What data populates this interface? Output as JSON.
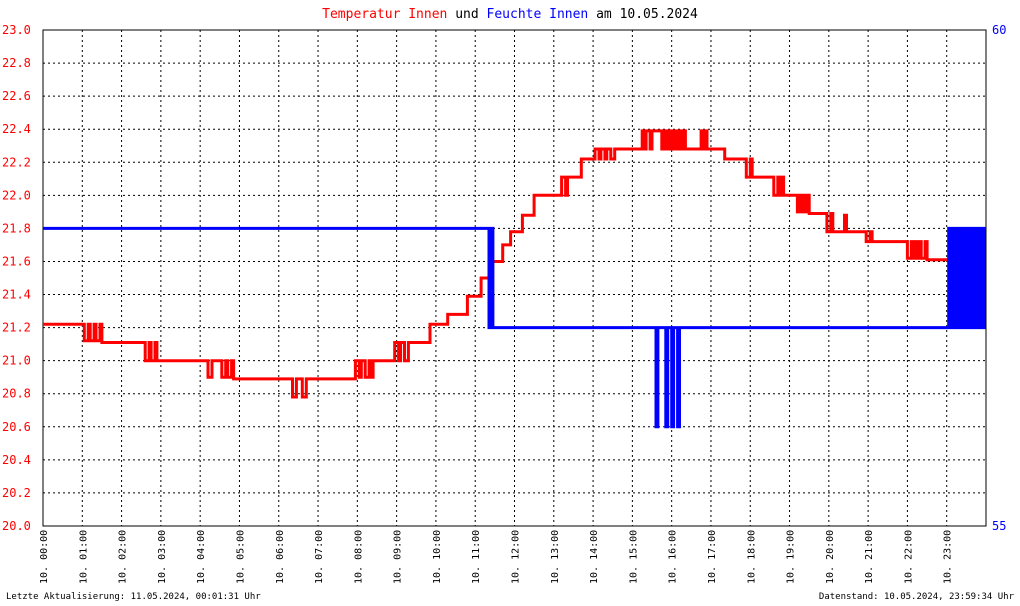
{
  "chart_data": {
    "type": "line",
    "title_parts": [
      {
        "text": "Temperatur Innen",
        "color": "#ff0000"
      },
      {
        "text": " und ",
        "color": "#000000"
      },
      {
        "text": "Feuchte Innen",
        "color": "#0000ff"
      },
      {
        "text": " am 10.05.2024",
        "color": "#000000"
      }
    ],
    "x_ticks": [
      "10. 00:00",
      "10. 01:00",
      "10. 02:00",
      "10. 03:00",
      "10. 04:00",
      "10. 05:00",
      "10. 06:00",
      "10. 07:00",
      "10. 08:00",
      "10. 09:00",
      "10. 10:00",
      "10. 11:00",
      "10. 12:00",
      "10. 13:00",
      "10. 14:00",
      "10. 15:00",
      "10. 16:00",
      "10. 17:00",
      "10. 18:00",
      "10. 19:00",
      "10. 20:00",
      "10. 21:00",
      "10. 22:00",
      "10. 23:00"
    ],
    "xlim_hours": [
      0,
      24
    ],
    "left_axis": {
      "ylim": [
        20.0,
        23.0
      ],
      "ticks": [
        "20.0",
        "20.2",
        "20.4",
        "20.6",
        "20.8",
        "21.0",
        "21.2",
        "21.4",
        "21.6",
        "21.8",
        "22.0",
        "22.2",
        "22.4",
        "22.6",
        "22.8",
        "23.0"
      ],
      "color": "#ff0000"
    },
    "right_axis": {
      "ylim": [
        55,
        60
      ],
      "ticks": [
        "55",
        "60"
      ],
      "color": "#0000ff"
    },
    "grid": true,
    "series": [
      {
        "axis": "left",
        "color": "#ff0000",
        "step": true,
        "points": [
          [
            0.0,
            21.22
          ],
          [
            1.05,
            21.22
          ],
          [
            1.05,
            21.12
          ],
          [
            1.15,
            21.22
          ],
          [
            1.2,
            21.12
          ],
          [
            1.3,
            21.22
          ],
          [
            1.35,
            21.12
          ],
          [
            1.45,
            21.22
          ],
          [
            1.5,
            21.11
          ],
          [
            2.6,
            21.11
          ],
          [
            2.6,
            21.0
          ],
          [
            2.7,
            21.11
          ],
          [
            2.75,
            21.0
          ],
          [
            2.85,
            21.11
          ],
          [
            2.9,
            21.0
          ],
          [
            4.2,
            21.0
          ],
          [
            4.2,
            20.9
          ],
          [
            4.3,
            21.0
          ],
          [
            4.5,
            21.0
          ],
          [
            4.55,
            20.9
          ],
          [
            4.65,
            21.0
          ],
          [
            4.7,
            20.9
          ],
          [
            4.8,
            21.0
          ],
          [
            4.85,
            20.89
          ],
          [
            6.35,
            20.89
          ],
          [
            6.35,
            20.78
          ],
          [
            6.45,
            20.89
          ],
          [
            6.6,
            20.89
          ],
          [
            6.6,
            20.78
          ],
          [
            6.7,
            20.89
          ],
          [
            7.95,
            20.89
          ],
          [
            7.95,
            21.0
          ],
          [
            8.05,
            20.9
          ],
          [
            8.1,
            21.0
          ],
          [
            8.2,
            20.9
          ],
          [
            8.3,
            21.0
          ],
          [
            8.35,
            20.9
          ],
          [
            8.4,
            21.0
          ],
          [
            8.95,
            21.0
          ],
          [
            8.95,
            21.11
          ],
          [
            9.05,
            21.0
          ],
          [
            9.1,
            21.11
          ],
          [
            9.2,
            21.0
          ],
          [
            9.3,
            21.11
          ],
          [
            9.85,
            21.11
          ],
          [
            9.85,
            21.22
          ],
          [
            10.0,
            21.22
          ],
          [
            10.3,
            21.22
          ],
          [
            10.3,
            21.28
          ],
          [
            10.8,
            21.28
          ],
          [
            10.8,
            21.39
          ],
          [
            11.15,
            21.39
          ],
          [
            11.15,
            21.5
          ],
          [
            11.4,
            21.5
          ],
          [
            11.4,
            21.6
          ],
          [
            11.7,
            21.6
          ],
          [
            11.7,
            21.7
          ],
          [
            11.9,
            21.7
          ],
          [
            11.9,
            21.78
          ],
          [
            12.2,
            21.78
          ],
          [
            12.2,
            21.88
          ],
          [
            12.5,
            21.88
          ],
          [
            12.5,
            22.0
          ],
          [
            13.2,
            22.0
          ],
          [
            13.2,
            22.11
          ],
          [
            13.3,
            22.0
          ],
          [
            13.35,
            22.11
          ],
          [
            13.7,
            22.11
          ],
          [
            13.7,
            22.22
          ],
          [
            14.05,
            22.22
          ],
          [
            14.05,
            22.28
          ],
          [
            14.15,
            22.22
          ],
          [
            14.2,
            22.28
          ],
          [
            14.3,
            22.22
          ],
          [
            14.35,
            22.28
          ],
          [
            14.45,
            22.22
          ],
          [
            14.55,
            22.28
          ],
          [
            15.25,
            22.28
          ],
          [
            15.25,
            22.39
          ],
          [
            15.3,
            22.28
          ],
          [
            15.35,
            22.39
          ],
          [
            15.45,
            22.28
          ],
          [
            15.5,
            22.39
          ],
          [
            15.75,
            22.39
          ],
          [
            15.75,
            22.28
          ],
          [
            15.8,
            22.39
          ],
          [
            15.85,
            22.28
          ],
          [
            15.9,
            22.39
          ],
          [
            15.95,
            22.28
          ],
          [
            16.0,
            22.39
          ],
          [
            16.05,
            22.28
          ],
          [
            16.1,
            22.39
          ],
          [
            16.15,
            22.28
          ],
          [
            16.2,
            22.39
          ],
          [
            16.25,
            22.28
          ],
          [
            16.3,
            22.39
          ],
          [
            16.35,
            22.28
          ],
          [
            16.75,
            22.28
          ],
          [
            16.75,
            22.39
          ],
          [
            16.8,
            22.28
          ],
          [
            16.85,
            22.39
          ],
          [
            16.9,
            22.28
          ],
          [
            17.35,
            22.28
          ],
          [
            17.35,
            22.22
          ],
          [
            17.9,
            22.22
          ],
          [
            17.9,
            22.11
          ],
          [
            18.0,
            22.22
          ],
          [
            18.05,
            22.11
          ],
          [
            18.6,
            22.11
          ],
          [
            18.6,
            22.0
          ],
          [
            18.7,
            22.11
          ],
          [
            18.75,
            22.0
          ],
          [
            18.8,
            22.11
          ],
          [
            18.85,
            22.0
          ],
          [
            19.2,
            22.0
          ],
          [
            19.2,
            21.9
          ],
          [
            19.25,
            22.0
          ],
          [
            19.3,
            21.9
          ],
          [
            19.35,
            22.0
          ],
          [
            19.4,
            21.9
          ],
          [
            19.45,
            22.0
          ],
          [
            19.5,
            21.89
          ],
          [
            19.95,
            21.89
          ],
          [
            19.95,
            21.78
          ],
          [
            20.05,
            21.89
          ],
          [
            20.1,
            21.78
          ],
          [
            20.4,
            21.78
          ],
          [
            20.4,
            21.88
          ],
          [
            20.45,
            21.78
          ],
          [
            20.95,
            21.78
          ],
          [
            20.95,
            21.72
          ],
          [
            21.05,
            21.78
          ],
          [
            21.1,
            21.72
          ],
          [
            21.2,
            21.72
          ],
          [
            22.0,
            21.72
          ],
          [
            22.0,
            21.62
          ],
          [
            22.1,
            21.72
          ],
          [
            22.15,
            21.62
          ],
          [
            22.2,
            21.72
          ],
          [
            22.25,
            21.62
          ],
          [
            22.3,
            21.72
          ],
          [
            22.35,
            21.62
          ],
          [
            22.45,
            21.72
          ],
          [
            22.5,
            21.61
          ],
          [
            23.8,
            21.61
          ],
          [
            23.8,
            21.5
          ],
          [
            23.85,
            21.61
          ],
          [
            23.9,
            21.61
          ],
          [
            23.9,
            21.5
          ]
        ]
      },
      {
        "axis": "right",
        "color": "#0000ff",
        "step": true,
        "points": [
          [
            0.0,
            58.0
          ],
          [
            11.35,
            58.0
          ],
          [
            11.35,
            57.0
          ],
          [
            11.4,
            58.0
          ],
          [
            11.45,
            57.0
          ],
          [
            15.6,
            57.0
          ],
          [
            15.6,
            56.0
          ],
          [
            15.65,
            57.0
          ],
          [
            15.85,
            57.0
          ],
          [
            15.85,
            56.0
          ],
          [
            15.9,
            57.0
          ],
          [
            16.0,
            57.0
          ],
          [
            16.0,
            56.0
          ],
          [
            16.05,
            57.0
          ],
          [
            16.15,
            57.0
          ],
          [
            16.15,
            56.0
          ],
          [
            16.2,
            57.0
          ],
          [
            23.05,
            57.0
          ],
          [
            23.05,
            58.0
          ],
          [
            23.1,
            57.0
          ],
          [
            23.15,
            58.0
          ],
          [
            23.2,
            57.0
          ],
          [
            23.25,
            58.0
          ],
          [
            23.3,
            57.0
          ],
          [
            23.35,
            58.0
          ],
          [
            23.4,
            57.0
          ],
          [
            23.45,
            58.0
          ],
          [
            23.5,
            57.0
          ],
          [
            23.55,
            58.0
          ],
          [
            23.6,
            57.0
          ],
          [
            23.65,
            58.0
          ],
          [
            23.7,
            57.0
          ],
          [
            23.75,
            58.0
          ],
          [
            23.8,
            57.0
          ],
          [
            23.85,
            58.0
          ],
          [
            23.9,
            57.0
          ],
          [
            23.95,
            58.0
          ],
          [
            24.0,
            58.0
          ]
        ]
      }
    ]
  },
  "footer": {
    "left": "Letzte Aktualisierung: 11.05.2024, 00:01:31 Uhr",
    "right": "Datenstand: 10.05.2024, 23:59:34 Uhr"
  }
}
